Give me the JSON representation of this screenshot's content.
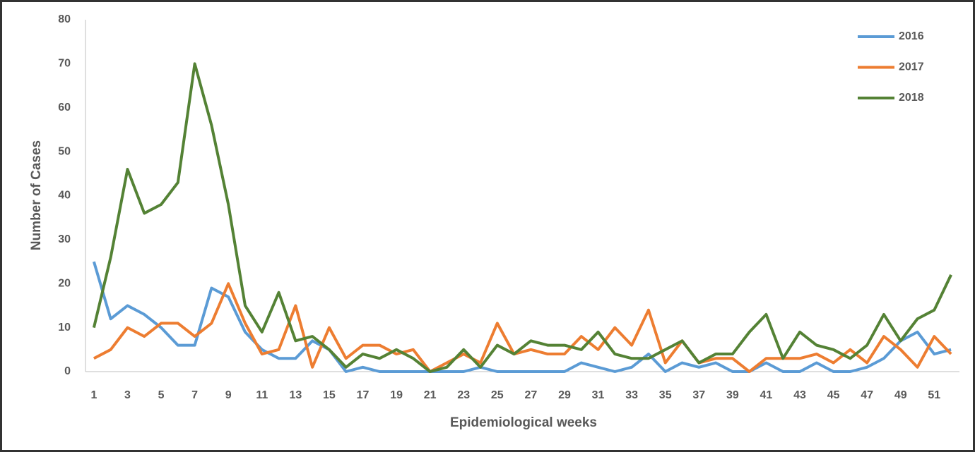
{
  "chart_data": {
    "type": "line",
    "y_label": "Number of Cases",
    "x_label": "Epidemiological weeks",
    "categories": [
      "1",
      null,
      "3",
      null,
      "5",
      null,
      "7",
      null,
      "9",
      null,
      "11",
      null,
      "13",
      null,
      "15",
      null,
      "17",
      null,
      "19",
      null,
      "21",
      null,
      "23",
      null,
      "25",
      null,
      "27",
      null,
      "29",
      null,
      "31",
      null,
      "33",
      null,
      "35",
      null,
      "37",
      null,
      "39",
      null,
      "41",
      null,
      "43",
      null,
      "45",
      null,
      "47",
      null,
      "49",
      null,
      "51",
      null
    ],
    "series": [
      {
        "name": "2016",
        "color": "#5b9bd5",
        "values": [
          25,
          12,
          15,
          13,
          10,
          6,
          6,
          19,
          17,
          9,
          5,
          3,
          3,
          7,
          5,
          0,
          1,
          0,
          0,
          0,
          0,
          0,
          0,
          1,
          0,
          0,
          0,
          0,
          0,
          2,
          1,
          0,
          1,
          4,
          0,
          2,
          1,
          2,
          0,
          0,
          2,
          0,
          0,
          2,
          0,
          0,
          1,
          3,
          7,
          9,
          4,
          5
        ]
      },
      {
        "name": "2017",
        "color": "#ed7d31",
        "values": [
          3,
          5,
          10,
          8,
          11,
          11,
          8,
          11,
          20,
          11,
          4,
          5,
          15,
          1,
          10,
          3,
          6,
          6,
          4,
          5,
          0,
          2,
          4,
          2,
          11,
          4,
          5,
          4,
          4,
          8,
          5,
          10,
          6,
          14,
          2,
          7,
          2,
          3,
          3,
          0,
          3,
          3,
          3,
          4,
          2,
          5,
          2,
          8,
          5,
          1,
          8,
          4
        ]
      },
      {
        "name": "2018",
        "color": "#548235",
        "values": [
          10,
          26,
          46,
          36,
          38,
          43,
          70,
          56,
          38,
          15,
          9,
          18,
          7,
          8,
          5,
          1,
          4,
          3,
          5,
          3,
          0,
          1,
          5,
          1,
          6,
          4,
          7,
          6,
          6,
          5,
          9,
          4,
          3,
          3,
          5,
          7,
          2,
          4,
          4,
          9,
          13,
          3,
          9,
          6,
          5,
          3,
          6,
          13,
          7,
          12,
          14,
          22
        ]
      }
    ],
    "ylim": [
      0,
      80
    ],
    "yticks": [
      0,
      10,
      20,
      30,
      40,
      50,
      60,
      70,
      80
    ],
    "grid": false,
    "legend": "top-right"
  }
}
